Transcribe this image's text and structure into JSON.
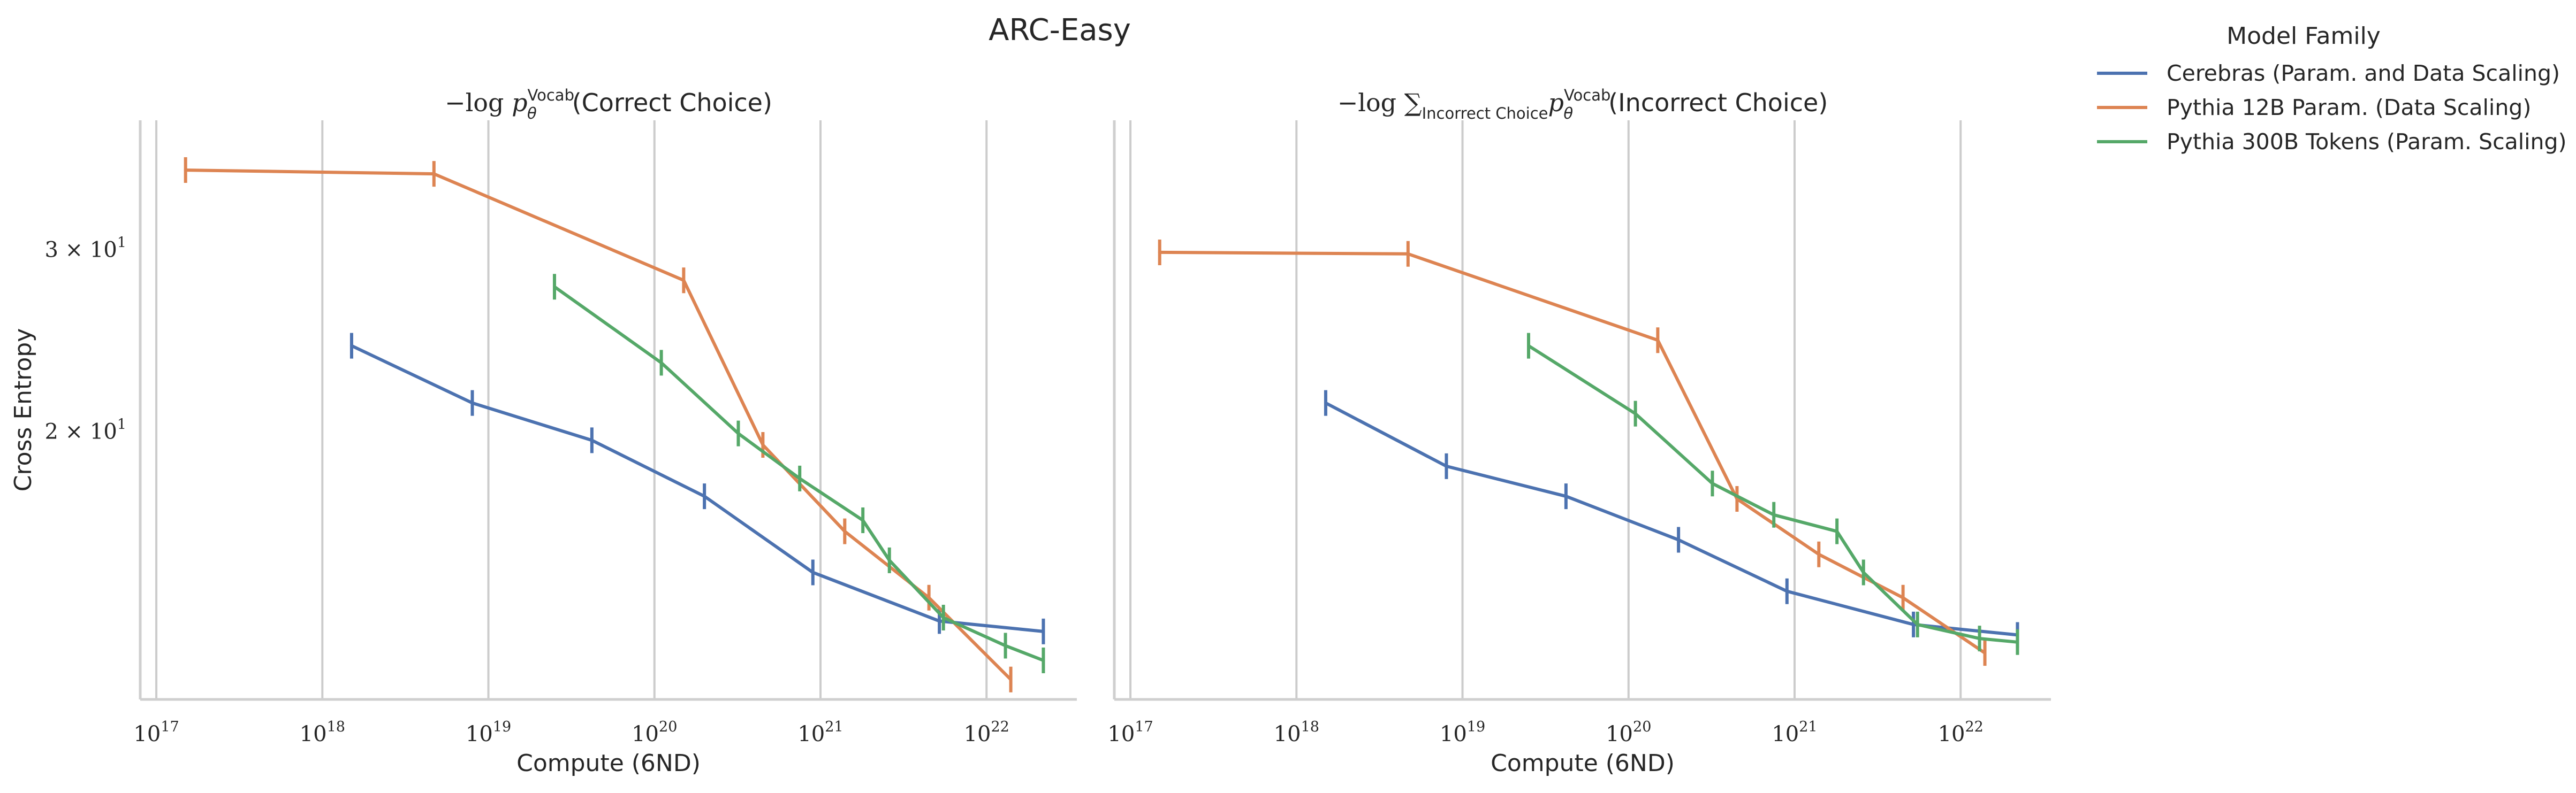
{
  "chart_data": {
    "type": "line",
    "title": "ARC-Easy",
    "legend": {
      "title": "Model Family",
      "placement": "outside-right-top",
      "entries": [
        {
          "name": "Cerebras (Param. and Data Scaling)",
          "color": "#4c72b0"
        },
        {
          "name": "Pythia 12B Param. (Data Scaling)",
          "color": "#dd8452"
        },
        {
          "name": "Pythia 300B Tokens (Param. Scaling)",
          "color": "#55a868"
        }
      ]
    },
    "x_tick_labels": [
      {
        "value": 1e+17,
        "base": "10",
        "exp": "17"
      },
      {
        "value": 1e+18,
        "base": "10",
        "exp": "18"
      },
      {
        "value": 1e+19,
        "base": "10",
        "exp": "19"
      },
      {
        "value": 1e+20,
        "base": "10",
        "exp": "20"
      },
      {
        "value": 1e+21,
        "base": "10",
        "exp": "21"
      },
      {
        "value": 1e+22,
        "base": "10",
        "exp": "22"
      }
    ],
    "panels": [
      {
        "title": {
          "prefix": "−log ",
          "sym": "p",
          "sub": "θ",
          "sup": "Vocab",
          "arg": "(Correct Choice)"
        },
        "xlabel": "Compute (6ND)",
        "ylabel": "Cross Entropy",
        "xscale": "log",
        "yscale": "log",
        "xlim": [
          8e+16,
          3.5e+22
        ],
        "ylim": [
          11.0,
          40.0
        ],
        "grid": "x",
        "y_tick_labels": [
          {
            "value": 30,
            "text": "3 × 10",
            "exp": "1"
          },
          {
            "value": 20,
            "text": "2 × 10",
            "exp": "1"
          }
        ],
        "series": [
          {
            "name": "Cerebras (Param. and Data Scaling)",
            "color": "#4c72b0",
            "x": [
              1.5e+18,
              8e+18,
              4.2e+19,
              2e+20,
              9e+20,
              5.2e+21,
              2.2e+22
            ],
            "y": [
              24.2,
              21.3,
              19.6,
              17.3,
              14.6,
              13.1,
              12.8
            ]
          },
          {
            "name": "Pythia 12B Param. (Data Scaling)",
            "color": "#dd8452",
            "x": [
              1.5e+17,
              4.7e+18,
              1.5e+20,
              4.5e+20,
              1.4e+21,
              4.5e+21,
              1.4e+22
            ],
            "y": [
              35.8,
              35.5,
              28.0,
              19.4,
              16.0,
              13.8,
              11.5
            ]
          },
          {
            "name": "Pythia 300B Tokens (Param. Scaling)",
            "color": "#55a868",
            "x": [
              2.5e+19,
              1.1e+20,
              3.2e+20,
              7.5e+20,
              1.8e+21,
              2.6e+21,
              5.5e+21,
              1.3e+22,
              2.2e+22
            ],
            "y": [
              27.6,
              23.3,
              19.9,
              18.0,
              16.4,
              15.0,
              13.2,
              12.4,
              12.0
            ]
          }
        ]
      },
      {
        "title": {
          "prefix": "−log ∑",
          "sum_sub": "Incorrect Choice",
          "sym": "p",
          "sub": "θ",
          "sup": "Vocab",
          "arg": "(Incorrect Choice)"
        },
        "xlabel": "Compute (6ND)",
        "ylabel": "",
        "xscale": "log",
        "yscale": "log",
        "xlim": [
          8e+16,
          3.5e+22
        ],
        "ylim": [
          11.0,
          40.0
        ],
        "grid": "x",
        "y_tick_labels": [],
        "series": [
          {
            "name": "Cerebras (Param. and Data Scaling)",
            "color": "#4c72b0",
            "x": [
              1.5e+18,
              8e+18,
              4.2e+19,
              2e+20,
              9e+20,
              5.2e+21,
              2.2e+22
            ],
            "y": [
              21.3,
              18.5,
              17.3,
              15.7,
              14.0,
              13.0,
              12.7
            ]
          },
          {
            "name": "Pythia 12B Param. (Data Scaling)",
            "color": "#dd8452",
            "x": [
              1.5e+17,
              4.7e+18,
              1.5e+20,
              4.5e+20,
              1.4e+21,
              4.5e+21,
              1.4e+22
            ],
            "y": [
              29.8,
              29.7,
              24.5,
              17.2,
              15.2,
              13.8,
              12.2
            ]
          },
          {
            "name": "Pythia 300B Tokens (Param. Scaling)",
            "color": "#55a868",
            "x": [
              2.5e+19,
              1.1e+20,
              3.2e+20,
              7.5e+20,
              1.8e+21,
              2.6e+21,
              5.5e+21,
              1.3e+22,
              2.2e+22
            ],
            "y": [
              24.2,
              20.8,
              17.8,
              16.6,
              16.0,
              14.6,
              13.0,
              12.6,
              12.5
            ]
          }
        ]
      }
    ]
  }
}
